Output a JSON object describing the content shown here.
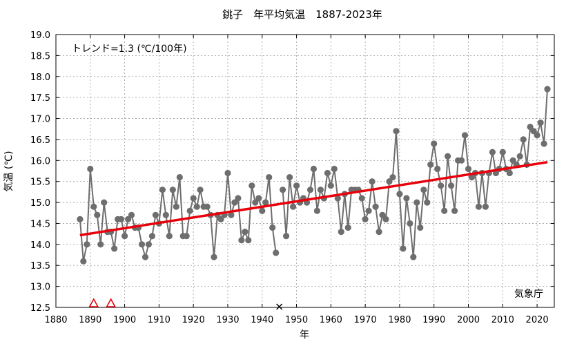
{
  "chart_data": {
    "type": "line",
    "title": "銚子　年平均気温　1887-2023年",
    "xlabel": "年",
    "ylabel": "気温 (℃)",
    "xlim": [
      1880,
      2025
    ],
    "ylim": [
      12.5,
      19.0
    ],
    "xticks": [
      1880,
      1890,
      1900,
      1910,
      1920,
      1930,
      1940,
      1950,
      1960,
      1970,
      1980,
      1990,
      2000,
      2010,
      2020
    ],
    "yticks": [
      "12.5",
      "13.0",
      "13.5",
      "14.0",
      "14.5",
      "15.0",
      "15.5",
      "16.0",
      "16.5",
      "17.0",
      "17.5",
      "18.0",
      "18.5",
      "19.0"
    ],
    "grid": true,
    "trend_label": "トレンド=1.3 (℃/100年)",
    "source_label": "気象庁",
    "colors": {
      "series": "#6e6e6e",
      "trend": "#e8000b",
      "triangle": "#e8000b",
      "cross": "#000000"
    },
    "series": [
      {
        "x": [
          1887,
          1888,
          1889,
          1890,
          1891,
          1892,
          1893,
          1894,
          1895,
          1896,
          1897,
          1898,
          1899,
          1900,
          1901,
          1902,
          1903,
          1904,
          1905,
          1906,
          1907,
          1908,
          1909,
          1910,
          1911,
          1912,
          1913,
          1914,
          1915,
          1916,
          1917,
          1918,
          1919,
          1920,
          1921,
          1922,
          1923,
          1924,
          1925,
          1926,
          1927,
          1928,
          1929,
          1930,
          1931,
          1932,
          1933,
          1934,
          1935,
          1936,
          1937,
          1938,
          1939,
          1940,
          1941,
          1942,
          1943,
          1944,
          1945,
          1946,
          1947,
          1948,
          1949,
          1950,
          1951,
          1952,
          1953,
          1954,
          1955,
          1956,
          1957,
          1958,
          1959,
          1960,
          1961,
          1962,
          1963,
          1964,
          1965,
          1966,
          1967,
          1968,
          1969,
          1970,
          1971,
          1972,
          1973,
          1974,
          1975,
          1976,
          1977,
          1978,
          1979,
          1980,
          1981,
          1982,
          1983,
          1984,
          1985,
          1986,
          1987,
          1988,
          1989,
          1990,
          1991,
          1992,
          1993,
          1994,
          1995,
          1996,
          1997,
          1998,
          1999,
          2000,
          2001,
          2002,
          2003,
          2004,
          2005,
          2006,
          2007,
          2008,
          2009,
          2010,
          2011,
          2012,
          2013,
          2014,
          2015,
          2016,
          2017,
          2018,
          2019,
          2020,
          2021,
          2022,
          2023
        ],
        "values": [
          14.6,
          13.6,
          14.0,
          15.8,
          14.9,
          14.7,
          14.0,
          15.0,
          14.3,
          14.3,
          13.9,
          14.6,
          14.6,
          14.2,
          14.6,
          14.7,
          14.4,
          14.4,
          14.0,
          13.7,
          14.0,
          14.2,
          14.7,
          14.5,
          15.3,
          14.7,
          14.2,
          15.3,
          14.9,
          15.6,
          14.2,
          14.2,
          14.8,
          15.1,
          14.9,
          15.3,
          14.9,
          14.9,
          14.7,
          13.7,
          14.7,
          14.6,
          14.7,
          15.7,
          14.7,
          15.0,
          15.1,
          14.1,
          14.3,
          14.1,
          15.4,
          15.0,
          15.1,
          14.8,
          15.0,
          15.6,
          14.4,
          13.8,
          null,
          15.3,
          14.2,
          15.6,
          14.9,
          15.4,
          15.0,
          15.1,
          15.0,
          15.3,
          15.8,
          14.8,
          15.3,
          15.1,
          15.7,
          15.4,
          15.8,
          15.1,
          14.3,
          15.2,
          14.4,
          15.3,
          15.3,
          15.3,
          15.1,
          14.6,
          14.8,
          15.5,
          14.9,
          14.3,
          14.7,
          14.6,
          15.5,
          15.6,
          16.7,
          15.2,
          13.9,
          15.1,
          14.5,
          13.7,
          15.0,
          14.4,
          15.3,
          15.0,
          15.9,
          16.4,
          15.8,
          15.4,
          14.8,
          16.1,
          15.4,
          14.8,
          16.0,
          16.0,
          16.6,
          15.8,
          15.6,
          15.7,
          14.9,
          15.7,
          14.9,
          15.7,
          16.2,
          15.7,
          15.8,
          16.2,
          15.8,
          15.7,
          16.0,
          15.9,
          16.1,
          16.5,
          15.9,
          16.8,
          16.7,
          16.6,
          16.9,
          16.4,
          17.7
        ]
      }
    ],
    "trend": {
      "x": [
        1887,
        2023
      ],
      "values": [
        14.22,
        15.96
      ]
    },
    "markers": {
      "triangles": [
        1891,
        1896
      ],
      "crosses": [
        1945
      ]
    }
  }
}
